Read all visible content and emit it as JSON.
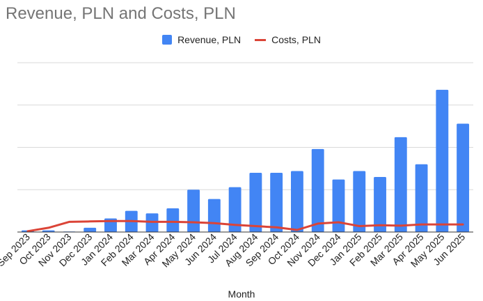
{
  "chart_data": {
    "type": "bar",
    "title": "Revenue, PLN and Costs, PLN",
    "xlabel": "Month",
    "ylabel": "",
    "ylim": [
      0,
      2000
    ],
    "grid": true,
    "legend_position": "top",
    "categories": [
      "Sep 2023",
      "Oct 2023",
      "Nov 2023",
      "Dec 2023",
      "Jan 2024",
      "Feb 2024",
      "Mar 2024",
      "Apr 2024",
      "May 2024",
      "Jun 2024",
      "Jul 2024",
      "Aug 2024",
      "Sep 2024",
      "Oct 2024",
      "Nov 2024",
      "Dec 2024",
      "Jan 2025",
      "Feb 2025",
      "Mar 2025",
      "Apr 2025",
      "May 2025",
      "Jun 2025"
    ],
    "series": [
      {
        "name": "Revenue, PLN",
        "type": "bar",
        "color": "#4285f4",
        "values": [
          20,
          20,
          0,
          50,
          160,
          250,
          220,
          280,
          500,
          390,
          530,
          700,
          700,
          720,
          980,
          620,
          720,
          650,
          1120,
          800,
          1680,
          1280
        ]
      },
      {
        "name": "Costs, PLN",
        "type": "line",
        "color": "#db4437",
        "values": [
          10,
          50,
          120,
          125,
          130,
          130,
          120,
          120,
          115,
          105,
          85,
          70,
          55,
          25,
          100,
          115,
          70,
          80,
          75,
          90,
          90,
          90
        ]
      }
    ]
  }
}
